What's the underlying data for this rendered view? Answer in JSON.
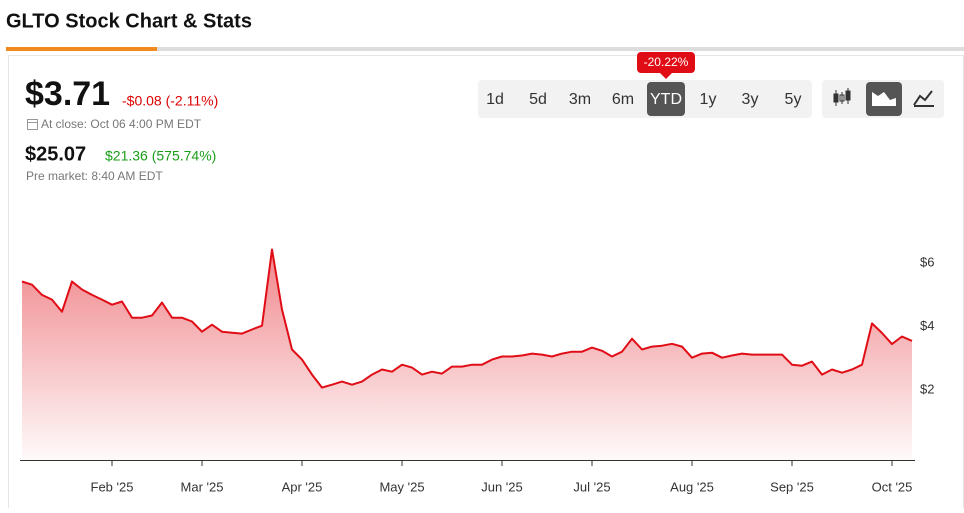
{
  "header": {
    "title": "GLTO Stock Chart & Stats"
  },
  "quote": {
    "price": "$3.71",
    "change": "-$0.08 (-2.11%)",
    "close_time": "At close: Oct 06 4:00 PM EDT",
    "premarket_price": "$25.07",
    "premarket_change": "$21.36 (575.74%)",
    "premarket_time": "Pre market: 8:40 AM EDT"
  },
  "ranges": [
    "1d",
    "5d",
    "3m",
    "6m",
    "YTD",
    "1y",
    "3y",
    "5y"
  ],
  "active_range": 4,
  "range_badge": "-20.22%",
  "chart_data": {
    "type": "area",
    "color": "#e00d16",
    "grid": false,
    "categories": [
      null,
      null,
      null,
      null,
      null,
      null,
      null,
      null,
      null,
      "Feb '25",
      null,
      null,
      null,
      null,
      null,
      null,
      null,
      null,
      "Mar '25",
      null,
      null,
      null,
      null,
      null,
      null,
      null,
      null,
      null,
      "Apr '25",
      null,
      null,
      null,
      null,
      null,
      null,
      null,
      null,
      null,
      "May '25",
      null,
      null,
      null,
      null,
      null,
      null,
      null,
      null,
      null,
      "Jun '25",
      null,
      null,
      null,
      null,
      null,
      null,
      null,
      null,
      "Jul '25",
      null,
      null,
      null,
      null,
      null,
      null,
      null,
      null,
      null,
      "Aug '25",
      null,
      null,
      null,
      null,
      null,
      null,
      null,
      null,
      null,
      "Sep '25",
      null,
      null,
      null,
      null,
      null,
      null,
      null,
      null,
      null,
      "Oct '25",
      null,
      null
    ],
    "values": [
      5.42,
      5.32,
      5.0,
      4.85,
      4.47,
      5.42,
      5.17,
      5.0,
      4.85,
      4.69,
      4.79,
      4.28,
      4.28,
      4.35,
      4.76,
      4.28,
      4.28,
      4.16,
      3.84,
      4.06,
      3.84,
      3.81,
      3.78,
      3.91,
      4.03,
      6.43,
      4.54,
      3.28,
      2.96,
      2.49,
      2.08,
      2.17,
      2.27,
      2.17,
      2.27,
      2.49,
      2.65,
      2.58,
      2.8,
      2.71,
      2.49,
      2.58,
      2.52,
      2.74,
      2.74,
      2.8,
      2.8,
      2.96,
      3.06,
      3.06,
      3.09,
      3.15,
      3.12,
      3.06,
      3.15,
      3.21,
      3.21,
      3.34,
      3.24,
      3.06,
      3.21,
      3.62,
      3.28,
      3.37,
      3.4,
      3.46,
      3.37,
      3.02,
      3.15,
      3.18,
      3.02,
      3.09,
      3.15,
      3.12,
      3.12,
      3.12,
      3.12,
      2.8,
      2.77,
      2.9,
      2.49,
      2.65,
      2.55,
      2.65,
      2.8,
      4.1,
      3.8,
      3.45,
      3.69,
      3.55
    ],
    "ylim": [
      -0.2,
      7.2
    ],
    "yticks": [
      {
        "value": 6,
        "label": "$6"
      },
      {
        "value": 4,
        "label": "$4"
      },
      {
        "value": 2,
        "label": "$2"
      }
    ]
  }
}
